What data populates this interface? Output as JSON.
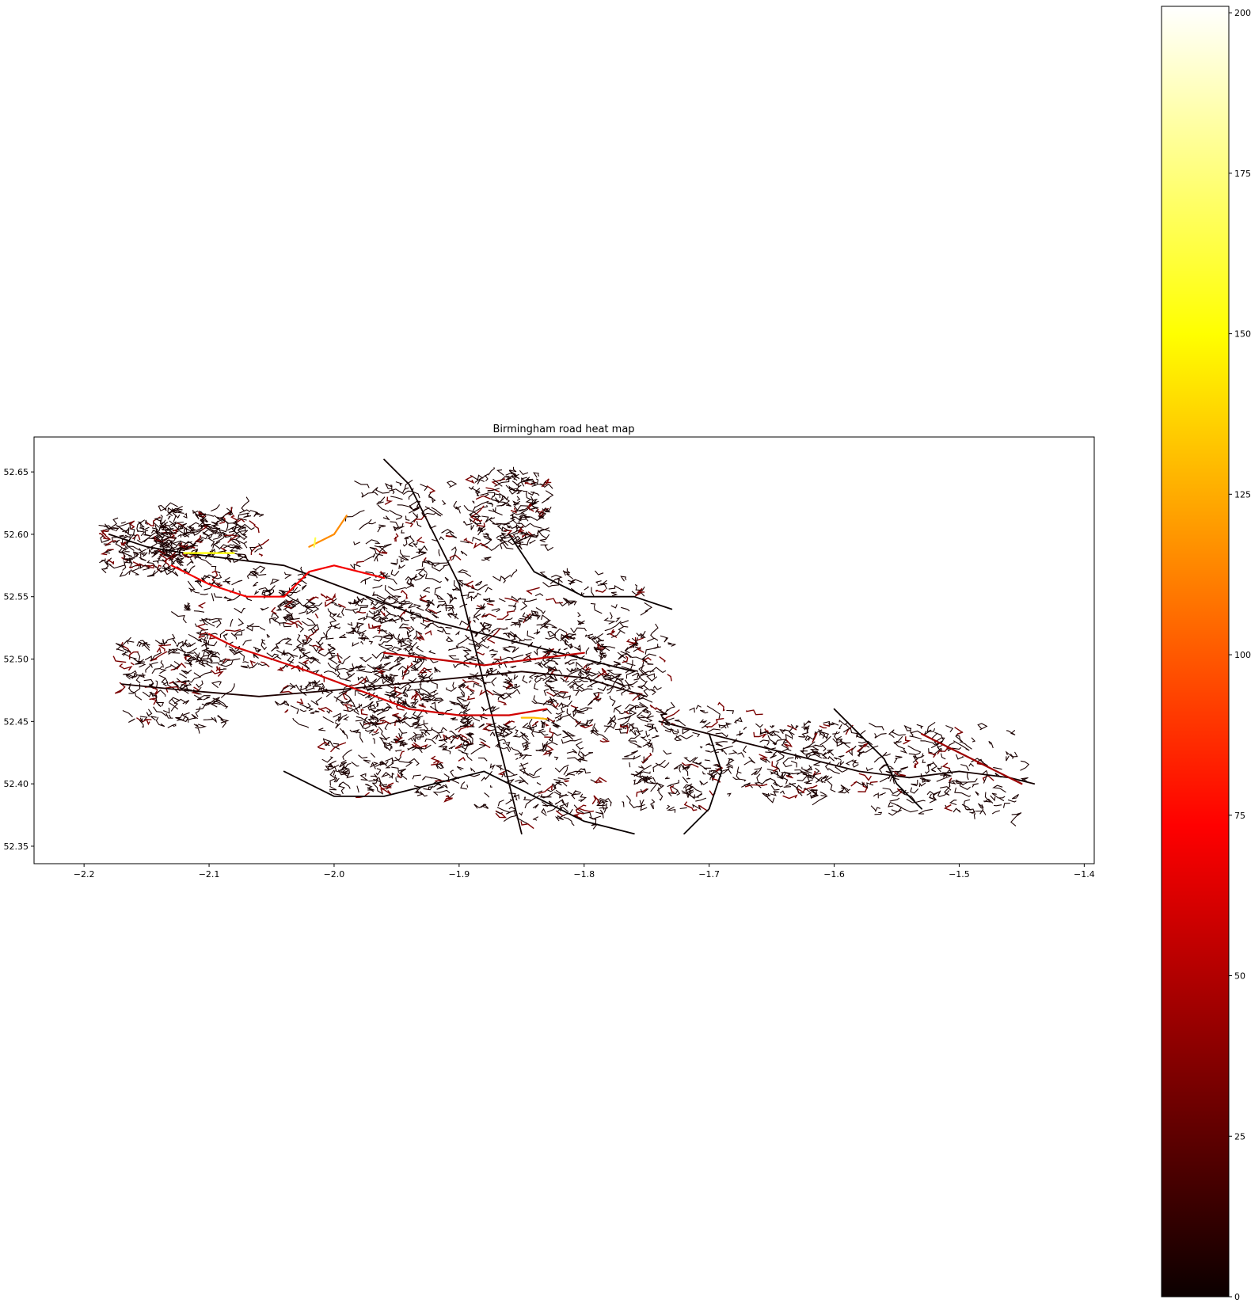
{
  "chart_data": [
    {
      "type": "map",
      "title": "Birmingham road heat map",
      "xlim": [
        -2.24,
        -1.392
      ],
      "ylim": [
        52.336,
        52.678
      ],
      "x_ticks": [
        -2.2,
        -2.1,
        -2.0,
        -1.9,
        -1.8,
        -1.7,
        -1.6,
        -1.5,
        -1.4
      ],
      "x_tick_labels": [
        "−2.2",
        "−2.1",
        "−2.0",
        "−1.9",
        "−1.8",
        "−1.7",
        "−1.6",
        "−1.5",
        "−1.4"
      ],
      "y_ticks": [
        52.35,
        52.4,
        52.45,
        52.5,
        52.55,
        52.6,
        52.65
      ],
      "y_tick_labels": [
        "52.35",
        "52.40",
        "52.45",
        "52.50",
        "52.55",
        "52.60",
        "52.65"
      ],
      "colormap": "hot",
      "grid": false,
      "road_polylines": [
        {
          "value": 5,
          "points": [
            [
              -2.18,
              52.6
            ],
            [
              -2.15,
              52.59
            ],
            [
              -2.12,
              52.585
            ],
            [
              -2.08,
              52.58
            ],
            [
              -2.04,
              52.575
            ],
            [
              -2.0,
              52.56
            ],
            [
              -1.96,
              52.545
            ],
            [
              -1.92,
              52.53
            ],
            [
              -1.88,
              52.52
            ],
            [
              -1.84,
              52.51
            ],
            [
              -1.8,
              52.5
            ],
            [
              -1.76,
              52.49
            ]
          ]
        },
        {
          "value": 8,
          "points": [
            [
              -2.17,
              52.48
            ],
            [
              -2.12,
              52.475
            ],
            [
              -2.06,
              52.47
            ],
            [
              -2.0,
              52.475
            ],
            [
              -1.95,
              52.48
            ],
            [
              -1.9,
              52.485
            ],
            [
              -1.85,
              52.49
            ],
            [
              -1.8,
              52.485
            ],
            [
              -1.75,
              52.47
            ]
          ]
        },
        {
          "value": 4,
          "points": [
            [
              -1.96,
              52.66
            ],
            [
              -1.94,
              52.64
            ],
            [
              -1.92,
              52.6
            ],
            [
              -1.9,
              52.56
            ],
            [
              -1.89,
              52.52
            ],
            [
              -1.88,
              52.48
            ],
            [
              -1.87,
              52.44
            ],
            [
              -1.86,
              52.4
            ],
            [
              -1.85,
              52.36
            ]
          ]
        },
        {
          "value": 6,
          "points": [
            [
              -1.74,
              52.45
            ],
            [
              -1.7,
              52.44
            ],
            [
              -1.66,
              52.43
            ],
            [
              -1.62,
              52.42
            ],
            [
              -1.58,
              52.41
            ],
            [
              -1.54,
              52.405
            ],
            [
              -1.5,
              52.41
            ],
            [
              -1.46,
              52.405
            ],
            [
              -1.44,
              52.4
            ]
          ]
        },
        {
          "value": 70,
          "points": [
            [
              -2.13,
              52.575
            ],
            [
              -2.1,
              52.56
            ],
            [
              -2.07,
              52.55
            ],
            [
              -2.04,
              52.55
            ],
            [
              -2.02,
              52.57
            ],
            [
              -2.0,
              52.575
            ],
            [
              -1.96,
              52.565
            ]
          ]
        },
        {
          "value": 115,
          "points": [
            [
              -2.02,
              52.59
            ],
            [
              -2.0,
              52.6
            ],
            [
              -1.99,
              52.615
            ]
          ]
        },
        {
          "value": 150,
          "points": [
            [
              -2.12,
              52.585
            ],
            [
              -2.1,
              52.585
            ],
            [
              -2.08,
              52.585
            ]
          ]
        },
        {
          "value": 165,
          "points": [
            [
              -2.016,
              52.59
            ],
            [
              -2.015,
              52.597
            ]
          ]
        },
        {
          "value": 60,
          "points": [
            [
              -2.1,
              52.52
            ],
            [
              -2.08,
              52.51
            ],
            [
              -2.05,
              52.5
            ],
            [
              -2.02,
              52.49
            ],
            [
              -1.98,
              52.475
            ],
            [
              -1.94,
              52.46
            ],
            [
              -1.9,
              52.455
            ],
            [
              -1.86,
              52.455
            ],
            [
              -1.83,
              52.46
            ]
          ]
        },
        {
          "value": 130,
          "points": [
            [
              -1.85,
              52.453
            ],
            [
              -1.84,
              52.453
            ],
            [
              -1.83,
              52.452
            ]
          ]
        },
        {
          "value": 55,
          "points": [
            [
              -1.96,
              52.505
            ],
            [
              -1.92,
              52.5
            ],
            [
              -1.88,
              52.495
            ],
            [
              -1.84,
              52.5
            ],
            [
              -1.8,
              52.505
            ]
          ]
        },
        {
          "value": 3,
          "points": [
            [
              -1.86,
              52.6
            ],
            [
              -1.84,
              52.57
            ],
            [
              -1.8,
              52.55
            ],
            [
              -1.76,
              52.55
            ],
            [
              -1.73,
              52.54
            ]
          ]
        },
        {
          "value": 2,
          "points": [
            [
              -1.7,
              52.44
            ],
            [
              -1.69,
              52.41
            ],
            [
              -1.7,
              52.38
            ],
            [
              -1.72,
              52.36
            ]
          ]
        },
        {
          "value": 2,
          "points": [
            [
              -1.6,
              52.46
            ],
            [
              -1.58,
              52.44
            ],
            [
              -1.56,
              52.42
            ],
            [
              -1.55,
              52.4
            ],
            [
              -1.53,
              52.38
            ]
          ]
        },
        {
          "value": 45,
          "points": [
            [
              -1.53,
              52.44
            ],
            [
              -1.51,
              52.43
            ],
            [
              -1.49,
              52.42
            ],
            [
              -1.47,
              52.41
            ],
            [
              -1.45,
              52.4
            ]
          ]
        },
        {
          "value": 3,
          "points": [
            [
              -2.04,
              52.41
            ],
            [
              -2.0,
              52.39
            ],
            [
              -1.96,
              52.39
            ],
            [
              -1.92,
              52.4
            ],
            [
              -1.88,
              52.41
            ],
            [
              -1.84,
              52.39
            ],
            [
              -1.8,
              52.37
            ],
            [
              -1.76,
              52.36
            ]
          ]
        }
      ],
      "colorbar": {
        "min": 0,
        "max": 201,
        "ticks": [
          0,
          25,
          50,
          75,
          100,
          125,
          150,
          175,
          200
        ],
        "tick_labels": [
          "0",
          "25",
          "50",
          "75",
          "100",
          "125",
          "150",
          "175",
          "200"
        ]
      }
    }
  ]
}
